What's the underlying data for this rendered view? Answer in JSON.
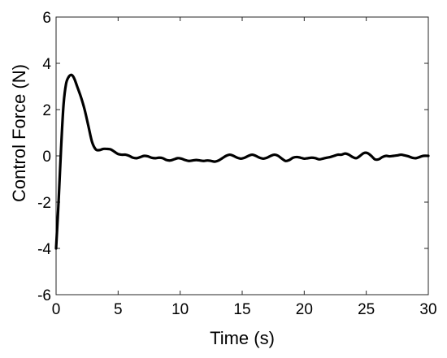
{
  "chart_data": {
    "type": "line",
    "title": "",
    "xlabel": "Time (s)",
    "ylabel": "Control Force (N)",
    "xlim": [
      0,
      30
    ],
    "ylim": [
      -6,
      6
    ],
    "xticks": [
      0,
      5,
      10,
      15,
      20,
      25,
      30
    ],
    "yticks": [
      -6,
      -4,
      -2,
      0,
      2,
      4,
      6
    ],
    "grid": false,
    "legend": "none",
    "line_color": "#000000",
    "series": [
      {
        "x": [
          0,
          0.2,
          0.4,
          0.6,
          0.8,
          1.0,
          1.2,
          1.35,
          1.5,
          1.7,
          2.0,
          2.3,
          2.6,
          2.9,
          3.2,
          3.5,
          3.8,
          4.1,
          4.4,
          4.7,
          5.0,
          5.3,
          5.6,
          5.9,
          6.2,
          6.5,
          6.8,
          7.1,
          7.4,
          7.7,
          8.0,
          8.3,
          8.6,
          8.9,
          9.2,
          9.5,
          9.8,
          10.1,
          10.4,
          10.7,
          11.0,
          11.3,
          11.6,
          11.9,
          12.2,
          12.5,
          12.8,
          13.1,
          13.4,
          13.7,
          14.0,
          14.3,
          14.6,
          14.9,
          15.2,
          15.5,
          15.8,
          16.1,
          16.4,
          16.7,
          17.0,
          17.3,
          17.6,
          17.9,
          18.2,
          18.5,
          18.8,
          19.1,
          19.4,
          19.7,
          20.0,
          20.3,
          20.6,
          20.9,
          21.2,
          21.5,
          21.8,
          22.1,
          22.4,
          22.7,
          23.0,
          23.3,
          23.6,
          23.9,
          24.2,
          24.5,
          24.8,
          25.1,
          25.4,
          25.7,
          26.0,
          26.3,
          26.6,
          26.9,
          27.2,
          27.5,
          27.8,
          28.1,
          28.4,
          28.7,
          29.0,
          29.3,
          29.6,
          30.0
        ],
        "y": [
          -4.0,
          -2.0,
          0.3,
          2.2,
          3.1,
          3.4,
          3.5,
          3.45,
          3.3,
          3.0,
          2.55,
          2.0,
          1.3,
          0.6,
          0.28,
          0.25,
          0.3,
          0.3,
          0.28,
          0.18,
          0.08,
          0.05,
          0.05,
          0.0,
          -0.08,
          -0.1,
          -0.05,
          0.0,
          -0.02,
          -0.08,
          -0.1,
          -0.08,
          -0.1,
          -0.18,
          -0.2,
          -0.15,
          -0.1,
          -0.12,
          -0.18,
          -0.22,
          -0.2,
          -0.18,
          -0.2,
          -0.22,
          -0.2,
          -0.22,
          -0.25,
          -0.2,
          -0.1,
          0.0,
          0.05,
          0.0,
          -0.08,
          -0.12,
          -0.08,
          0.0,
          0.05,
          0.0,
          -0.08,
          -0.12,
          -0.08,
          0.0,
          0.05,
          0.0,
          -0.12,
          -0.22,
          -0.18,
          -0.08,
          -0.05,
          -0.08,
          -0.12,
          -0.1,
          -0.08,
          -0.1,
          -0.15,
          -0.12,
          -0.08,
          -0.05,
          0.0,
          0.05,
          0.05,
          0.1,
          0.05,
          -0.05,
          -0.1,
          0.0,
          0.12,
          0.12,
          0.0,
          -0.15,
          -0.15,
          -0.05,
          0.0,
          -0.02,
          0.0,
          0.02,
          0.05,
          0.02,
          -0.02,
          -0.08,
          -0.1,
          -0.05,
          0.0,
          0.0
        ]
      }
    ]
  }
}
